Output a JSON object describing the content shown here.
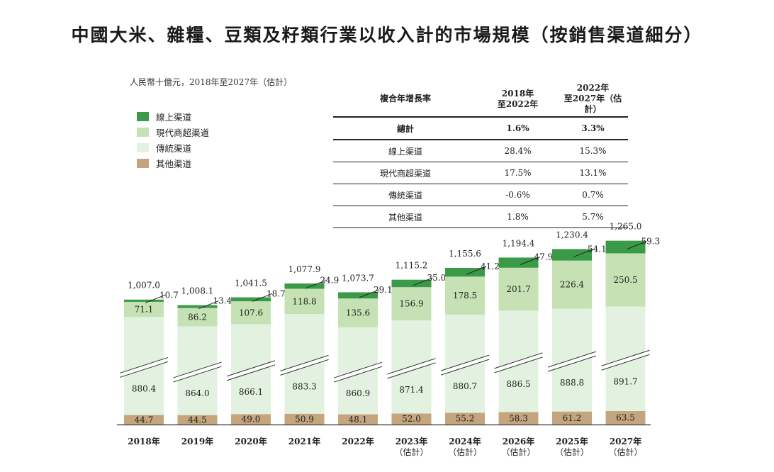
{
  "title": "中國大米、雜糧、豆類及籽類行業以收入計的市場規模（按銷售渠道細分）",
  "unit_note": "人民幣十億元，2018年至2027年（估計）",
  "legend": [
    {
      "name": "線上渠道",
      "color": "#3a9a47"
    },
    {
      "name": "現代商超渠道",
      "color": "#c6e2b4"
    },
    {
      "name": "傳統渠道",
      "color": "#e3f2e0"
    },
    {
      "name": "其他渠道",
      "color": "#c4a57e"
    }
  ],
  "cagr_table": {
    "header": [
      "複合年增長率",
      "2018年\n至2022年",
      "2022年\n至2027年（估計）"
    ],
    "rows": [
      {
        "label": "總計",
        "a": "1.6%",
        "b": "3.3%",
        "total": true
      },
      {
        "label": "線上渠道",
        "a": "28.4%",
        "b": "15.3%"
      },
      {
        "label": "現代商超渠道",
        "a": "17.5%",
        "b": "13.1%"
      },
      {
        "label": "傳統渠道",
        "a": "-0.6%",
        "b": "0.7%"
      },
      {
        "label": "其他渠道",
        "a": "1.8%",
        "b": "5.7%"
      }
    ]
  },
  "chart_data": {
    "type": "bar",
    "stacked": true,
    "axis_break": true,
    "categories": [
      [
        "2018年"
      ],
      [
        "2019年"
      ],
      [
        "2020年"
      ],
      [
        "2021年"
      ],
      [
        "2022年"
      ],
      [
        "2023年",
        "（估計）"
      ],
      [
        "2024年",
        "（估計）"
      ],
      [
        "2026年",
        "（估計）"
      ],
      [
        "2025年",
        "（估計）"
      ],
      [
        "2027年",
        "（估計）"
      ]
    ],
    "totals": [
      "1,007.0",
      "1,008.1",
      "1,041.5",
      "1,077.9",
      "1,073.7",
      "1,115.2",
      "1,155.6",
      "1,194.4",
      "1,230.4",
      "1,265.0"
    ],
    "series": [
      {
        "name": "其他渠道",
        "color": "#c4a57e",
        "values": [
          44.7,
          44.5,
          49.0,
          50.9,
          48.1,
          52.0,
          55.2,
          58.3,
          61.2,
          63.5
        ]
      },
      {
        "name": "傳統渠道",
        "color": "#e3f2e0",
        "values": [
          880.4,
          864.0,
          866.1,
          883.3,
          860.9,
          871.4,
          880.7,
          886.5,
          888.8,
          891.7
        ]
      },
      {
        "name": "現代商超渠道",
        "color": "#c6e2b4",
        "values": [
          71.1,
          86.2,
          107.6,
          118.8,
          135.6,
          156.9,
          178.5,
          201.7,
          226.4,
          250.5
        ]
      },
      {
        "name": "線上渠道",
        "color": "#3a9a47",
        "values": [
          10.7,
          13.4,
          18.7,
          24.9,
          29.1,
          35.0,
          41.2,
          47.9,
          54.1,
          59.3
        ]
      }
    ]
  }
}
